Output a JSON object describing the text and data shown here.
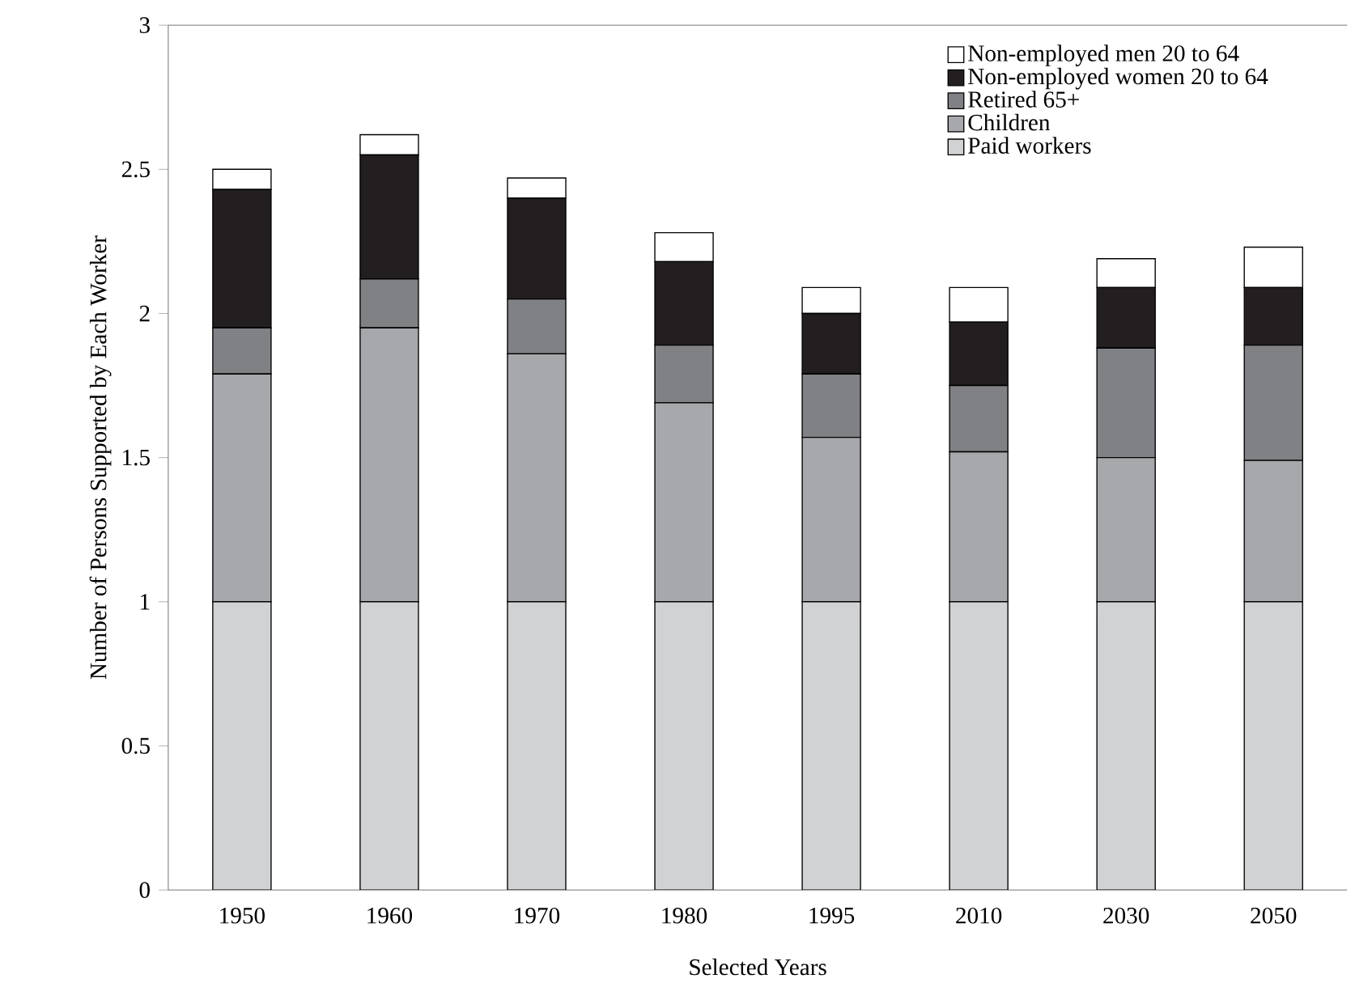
{
  "chart_data": {
    "type": "bar",
    "stacked": true,
    "xlabel": "Selected Years",
    "ylabel": "Number of Persons Supported by Each Worker",
    "categories": [
      "1950",
      "1960",
      "1970",
      "1980",
      "1995",
      "2010",
      "2030",
      "2050"
    ],
    "series": [
      {
        "name": "Paid workers",
        "color": "#d1d2d4",
        "values": [
          1,
          1,
          1,
          1,
          1,
          1,
          1,
          1
        ]
      },
      {
        "name": "Children",
        "color": "#a7a8ab",
        "values": [
          0.79,
          0.95,
          0.86,
          0.69,
          0.57,
          0.52,
          0.5,
          0.49
        ]
      },
      {
        "name": "Retired 65+",
        "color": "#808184",
        "values": [
          0.16,
          0.17,
          0.19,
          0.2,
          0.22,
          0.23,
          0.38,
          0.4
        ]
      },
      {
        "name": "Non-employed women 20 to 64",
        "color": "#231f20",
        "values": [
          0.48,
          0.43,
          0.35,
          0.29,
          0.21,
          0.22,
          0.21,
          0.2
        ]
      },
      {
        "name": "Non-employed men 20 to 64",
        "color": "#ffffff",
        "values": [
          0.07,
          0.07,
          0.07,
          0.1,
          0.09,
          0.12,
          0.1,
          0.14
        ]
      }
    ],
    "ylim": [
      0,
      3
    ],
    "yticks": [
      0,
      0.5,
      1,
      1.5,
      2,
      2.5,
      3
    ],
    "legend": "top right"
  }
}
